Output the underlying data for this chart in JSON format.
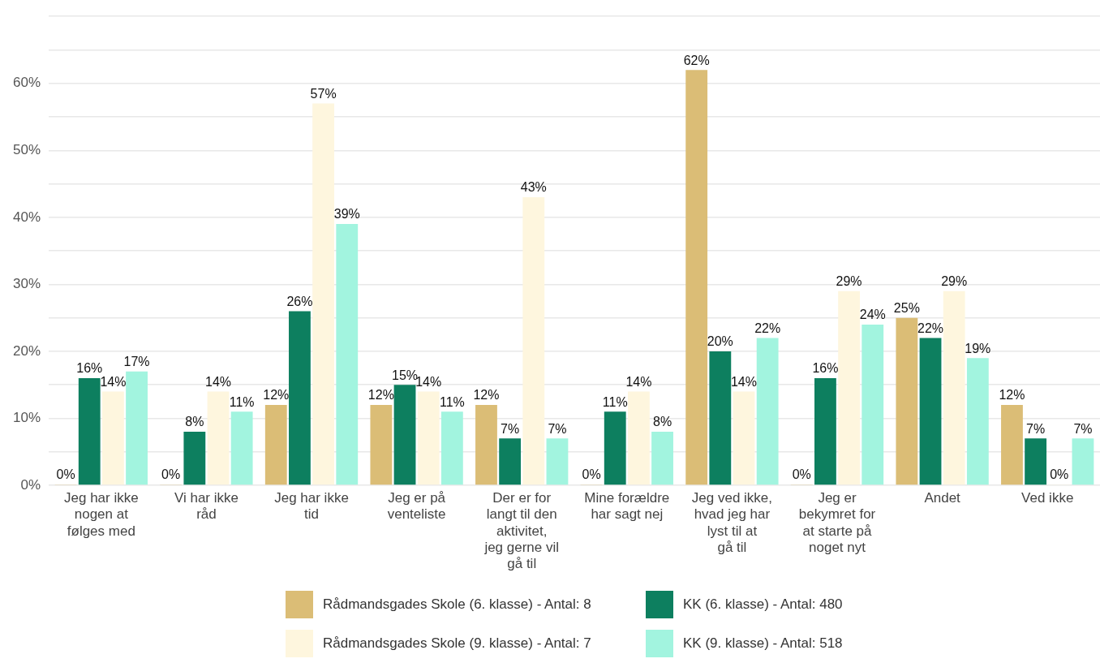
{
  "chart_data": {
    "type": "bar",
    "categories": [
      "Jeg har ikke nogen at følges med",
      "Vi har ikke råd",
      "Jeg har ikke tid",
      "Jeg er på venteliste",
      "Der er for langt til den aktivitet, jeg gerne vil gå til",
      "Mine forældre har sagt nej",
      "Jeg ved ikke, hvad jeg har lyst til at gå til",
      "Jeg er bekymret for at starte på noget nyt",
      "Andet",
      "Ved ikke"
    ],
    "series": [
      {
        "name": "Rådmandsgades Skole (6. klasse) - Antal: 8",
        "color": "#dbbd76",
        "values": [
          0,
          0,
          12,
          12,
          12,
          0,
          62,
          0,
          25,
          12
        ],
        "value_labels": [
          "0%",
          "0%",
          "12%",
          "12%",
          "12%",
          "0%",
          "62%",
          "0%",
          "25%",
          "12%"
        ]
      },
      {
        "name": "KK (6. klasse) - Antal: 480",
        "color": "#0d7f5f",
        "values": [
          16,
          8,
          26,
          15,
          7,
          11,
          20,
          16,
          22,
          7
        ],
        "value_labels": [
          "16%",
          "8%",
          "26%",
          "15%",
          "7%",
          "11%",
          "20%",
          "16%",
          "22%",
          "7%"
        ]
      },
      {
        "name": "Rådmandsgades Skole (9. klasse) - Antal: 7",
        "color": "#fef6de",
        "values": [
          14,
          14,
          57,
          14,
          43,
          14,
          14,
          29,
          29,
          0
        ],
        "value_labels": [
          "14%",
          "14%",
          "57%",
          "14%",
          "43%",
          "14%",
          "14%",
          "29%",
          "29%",
          "0%"
        ]
      },
      {
        "name": "KK (9. klasse) - Antal: 518",
        "color": "#a2f4df",
        "values": [
          17,
          11,
          39,
          11,
          7,
          8,
          22,
          24,
          19,
          7
        ],
        "value_labels": [
          "17%",
          "11%",
          "39%",
          "11%",
          "7%",
          "8%",
          "22%",
          "24%",
          "19%",
          "7%"
        ]
      }
    ],
    "ylim": [
      0,
      70
    ],
    "yticks": [
      {
        "value": 0,
        "label": "0%"
      },
      {
        "value": 5,
        "label": null
      },
      {
        "value": 10,
        "label": "10%"
      },
      {
        "value": 15,
        "label": null
      },
      {
        "value": 20,
        "label": "20%"
      },
      {
        "value": 25,
        "label": null
      },
      {
        "value": 30,
        "label": "30%"
      },
      {
        "value": 35,
        "label": null
      },
      {
        "value": 40,
        "label": "40%"
      },
      {
        "value": 45,
        "label": null
      },
      {
        "value": 50,
        "label": "50%"
      },
      {
        "value": 55,
        "label": null
      },
      {
        "value": 60,
        "label": "60%"
      },
      {
        "value": 65,
        "label": null
      },
      {
        "value": 70,
        "label": null
      }
    ],
    "grid": "y",
    "legend": "bottom"
  }
}
